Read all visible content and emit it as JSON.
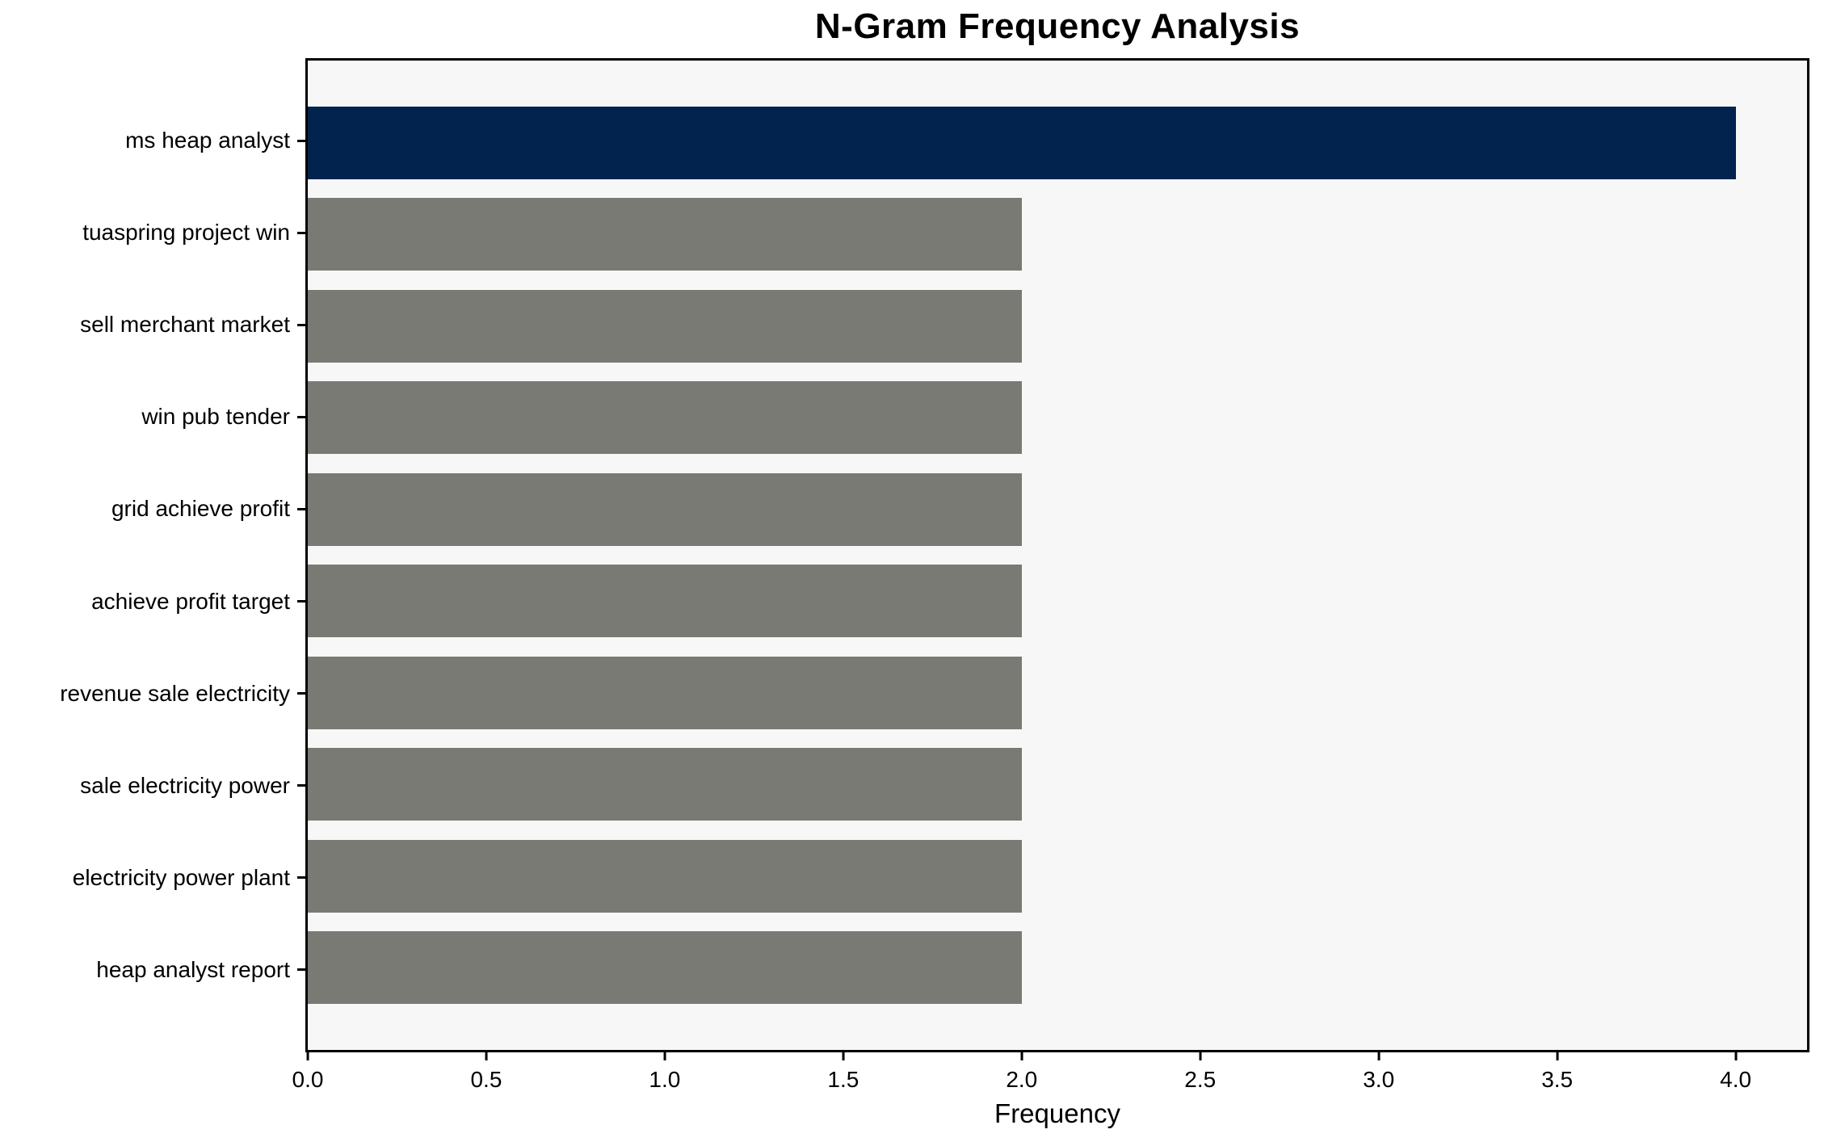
{
  "chart_data": {
    "type": "bar",
    "orientation": "horizontal",
    "title": "N-Gram Frequency Analysis",
    "xlabel": "Frequency",
    "ylabel": "",
    "categories": [
      "ms heap analyst",
      "tuaspring project win",
      "sell merchant market",
      "win pub tender",
      "grid achieve profit",
      "achieve profit target",
      "revenue sale electricity",
      "sale electricity power",
      "electricity power plant",
      "heap analyst report"
    ],
    "values": [
      4,
      2,
      2,
      2,
      2,
      2,
      2,
      2,
      2,
      2
    ],
    "bar_colors": [
      "#01234e",
      "#7a7a74",
      "#7a7a74",
      "#7a7a74",
      "#7a7a74",
      "#7a7a74",
      "#7a7a74",
      "#7a7a74",
      "#7a7a74",
      "#7a7a74"
    ],
    "xlim": [
      0,
      4.2
    ],
    "xticks": [
      {
        "value": 0.0,
        "label": "0.0"
      },
      {
        "value": 0.5,
        "label": "0.5"
      },
      {
        "value": 1.0,
        "label": "1.0"
      },
      {
        "value": 1.5,
        "label": "1.5"
      },
      {
        "value": 2.0,
        "label": "2.0"
      },
      {
        "value": 2.5,
        "label": "2.5"
      },
      {
        "value": 3.0,
        "label": "3.0"
      },
      {
        "value": 3.5,
        "label": "3.5"
      },
      {
        "value": 4.0,
        "label": "4.0"
      }
    ],
    "grid": false,
    "legend": false,
    "colors": {
      "highlight_bar": "#01234e",
      "default_bar": "#7a7a74",
      "plot_background": "#f7f7f7",
      "figure_background": "#ffffff",
      "spine": "#000000",
      "text": "#000000"
    }
  }
}
